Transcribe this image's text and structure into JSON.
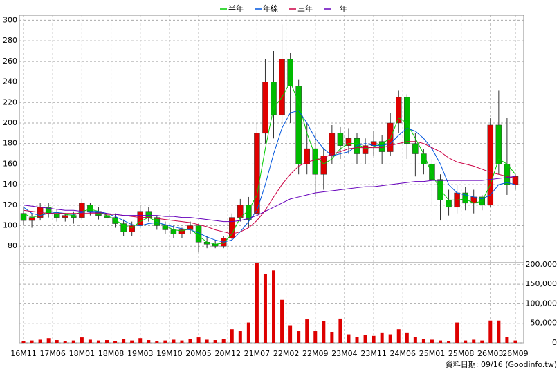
{
  "chart_data": {
    "type": "candlestick",
    "legend": [
      {
        "name": "半年",
        "color": "#00cc00"
      },
      {
        "name": "年線",
        "color": "#0055dd"
      },
      {
        "name": "三年",
        "color": "#cc0044"
      },
      {
        "name": "十年",
        "color": "#6600bb"
      }
    ],
    "up_color": "#e00000",
    "down_color": "#00bb00",
    "grid": true,
    "footer": "資料日期: 09/16 (Goodinfo.tw)",
    "xlim": [
      -1,
      120
    ],
    "xticks": [
      {
        "value": 0,
        "label": "16M11"
      },
      {
        "value": 7,
        "label": "17M06"
      },
      {
        "value": 14,
        "label": "18M01"
      },
      {
        "value": 21,
        "label": "18M08"
      },
      {
        "value": 28,
        "label": "19M03"
      },
      {
        "value": 35,
        "label": "19M10"
      },
      {
        "value": 42,
        "label": "20M05"
      },
      {
        "value": 49,
        "label": "20M12"
      },
      {
        "value": 56,
        "label": "21M07"
      },
      {
        "value": 63,
        "label": "22M02"
      },
      {
        "value": 70,
        "label": "22M09"
      },
      {
        "value": 77,
        "label": "23M04"
      },
      {
        "value": 84,
        "label": "23M11"
      },
      {
        "value": 91,
        "label": "24M06"
      },
      {
        "value": 98,
        "label": "25M01"
      },
      {
        "value": 105,
        "label": "25M08"
      },
      {
        "value": 112,
        "label": "26M03"
      },
      {
        "value": 118,
        "label": "26M09"
      }
    ],
    "ylim": [
      64,
      305
    ],
    "yticks": [
      80,
      100,
      120,
      140,
      160,
      180,
      200,
      220,
      240,
      260,
      280,
      300
    ],
    "x": [
      0,
      2,
      4,
      6,
      8,
      10,
      12,
      14,
      16,
      18,
      20,
      22,
      24,
      26,
      28,
      30,
      32,
      34,
      36,
      38,
      40,
      42,
      44,
      46,
      48,
      50,
      52,
      54,
      56,
      58,
      60,
      62,
      64,
      66,
      68,
      70,
      72,
      74,
      76,
      78,
      80,
      82,
      84,
      86,
      88,
      90,
      92,
      94,
      96,
      98,
      100,
      102,
      104,
      106,
      108,
      110,
      112,
      114,
      116,
      118
    ],
    "ohlc": [
      [
        112,
        118,
        100,
        105
      ],
      [
        105,
        112,
        98,
        108
      ],
      [
        108,
        122,
        105,
        118
      ],
      [
        118,
        122,
        108,
        112
      ],
      [
        112,
        116,
        104,
        108
      ],
      [
        108,
        112,
        104,
        110
      ],
      [
        110,
        114,
        102,
        108
      ],
      [
        108,
        126,
        106,
        122
      ],
      [
        120,
        122,
        110,
        114
      ],
      [
        114,
        118,
        106,
        110
      ],
      [
        110,
        116,
        102,
        108
      ],
      [
        108,
        112,
        98,
        102
      ],
      [
        102,
        106,
        90,
        94
      ],
      [
        94,
        104,
        90,
        100
      ],
      [
        100,
        120,
        98,
        114
      ],
      [
        114,
        118,
        104,
        108
      ],
      [
        108,
        110,
        96,
        100
      ],
      [
        100,
        104,
        92,
        96
      ],
      [
        96,
        100,
        88,
        92
      ],
      [
        92,
        98,
        88,
        96
      ],
      [
        96,
        104,
        92,
        100
      ],
      [
        100,
        102,
        74,
        84
      ],
      [
        84,
        90,
        78,
        82
      ],
      [
        82,
        86,
        78,
        80
      ],
      [
        80,
        90,
        78,
        88
      ],
      [
        88,
        112,
        86,
        108
      ],
      [
        108,
        126,
        104,
        120
      ],
      [
        120,
        128,
        98,
        106
      ],
      [
        112,
        200,
        110,
        190
      ],
      [
        190,
        262,
        180,
        240
      ],
      [
        240,
        270,
        185,
        208
      ],
      [
        208,
        296,
        200,
        262
      ],
      [
        262,
        268,
        200,
        236
      ],
      [
        236,
        242,
        150,
        160
      ],
      [
        160,
        200,
        150,
        175
      ],
      [
        175,
        190,
        128,
        150
      ],
      [
        150,
        175,
        135,
        168
      ],
      [
        168,
        198,
        160,
        190
      ],
      [
        190,
        196,
        165,
        178
      ],
      [
        178,
        195,
        170,
        185
      ],
      [
        185,
        190,
        160,
        170
      ],
      [
        170,
        185,
        160,
        178
      ],
      [
        178,
        192,
        168,
        182
      ],
      [
        182,
        188,
        160,
        172
      ],
      [
        172,
        210,
        168,
        200
      ],
      [
        200,
        232,
        190,
        225
      ],
      [
        225,
        228,
        165,
        180
      ],
      [
        180,
        190,
        148,
        170
      ],
      [
        170,
        175,
        150,
        160
      ],
      [
        160,
        165,
        120,
        145
      ],
      [
        145,
        150,
        105,
        125
      ],
      [
        125,
        135,
        110,
        118
      ],
      [
        118,
        140,
        112,
        132
      ],
      [
        132,
        138,
        115,
        122
      ],
      [
        122,
        135,
        112,
        128
      ],
      [
        128,
        130,
        115,
        120
      ],
      [
        120,
        205,
        118,
        198
      ],
      [
        198,
        232,
        150,
        160
      ],
      [
        160,
        205,
        130,
        140
      ],
      [
        140,
        150,
        135,
        148
      ]
    ],
    "series": [
      {
        "name": "半年",
        "color": "#00cc00",
        "values": [
          112,
          108,
          110,
          114,
          113,
          111,
          110,
          114,
          116,
          114,
          110,
          106,
          100,
          98,
          104,
          108,
          104,
          100,
          96,
          95,
          97,
          90,
          84,
          82,
          83,
          92,
          108,
          115,
          130,
          175,
          215,
          225,
          240,
          220,
          190,
          168,
          160,
          165,
          175,
          180,
          180,
          175,
          177,
          180,
          185,
          205,
          200,
          185,
          170,
          150,
          135,
          125,
          125,
          126,
          122,
          124,
          140,
          165,
          160,
          150
        ]
      },
      {
        "name": "年線",
        "color": "#0055dd",
        "values": [
          118,
          112,
          110,
          112,
          113,
          112,
          111,
          113,
          114,
          114,
          112,
          109,
          105,
          101,
          100,
          102,
          103,
          101,
          99,
          97,
          96,
          93,
          89,
          86,
          84,
          86,
          94,
          104,
          115,
          140,
          170,
          195,
          210,
          212,
          200,
          185,
          175,
          168,
          170,
          172,
          178,
          180,
          178,
          178,
          180,
          188,
          195,
          192,
          185,
          175,
          160,
          140,
          132,
          130,
          128,
          126,
          130,
          140,
          142,
          140
        ]
      },
      {
        "name": "三年",
        "color": "#cc0044",
        "values": [
          115,
          114,
          113,
          112,
          112,
          112,
          112,
          112,
          112,
          112,
          111,
          111,
          110,
          109,
          108,
          108,
          107,
          106,
          105,
          104,
          103,
          101,
          99,
          96,
          94,
          92,
          94,
          98,
          105,
          115,
          128,
          140,
          150,
          158,
          162,
          164,
          166,
          170,
          172,
          175,
          176,
          176,
          176,
          176,
          178,
          180,
          182,
          182,
          180,
          176,
          172,
          166,
          162,
          160,
          158,
          155,
          152,
          150,
          148,
          146
        ]
      },
      {
        "name": "十年",
        "color": "#6600bb",
        "values": [
          120,
          119,
          118,
          117,
          116,
          115,
          115,
          114,
          113,
          113,
          112,
          111,
          110,
          110,
          110,
          110,
          110,
          109,
          109,
          108,
          108,
          107,
          106,
          105,
          104,
          104,
          105,
          107,
          110,
          114,
          118,
          122,
          126,
          128,
          130,
          132,
          133,
          134,
          135,
          136,
          137,
          138,
          138,
          139,
          140,
          141,
          142,
          143,
          143,
          144,
          144,
          144,
          144,
          144,
          144,
          144,
          145,
          146,
          147,
          148
        ]
      }
    ],
    "volume": {
      "color": "#dd0000",
      "ylim": [
        0,
        205000
      ],
      "yticks": [
        0,
        {
          "value": 50000,
          "label": "50,000"
        },
        {
          "value": 100000,
          "label": "100,000"
        },
        {
          "value": 150000,
          "label": "150,000"
        },
        {
          "value": 200000,
          "label": "200,000"
        }
      ],
      "values": [
        4000,
        6000,
        8000,
        12000,
        7000,
        5000,
        6000,
        14000,
        8000,
        6000,
        7000,
        5000,
        9000,
        6000,
        12000,
        7000,
        5000,
        6000,
        8000,
        6000,
        9000,
        14000,
        8000,
        7000,
        10000,
        35000,
        30000,
        52000,
        205000,
        175000,
        185000,
        110000,
        45000,
        30000,
        60000,
        30000,
        55000,
        28000,
        62000,
        22000,
        15000,
        20000,
        18000,
        25000,
        22000,
        35000,
        25000,
        15000,
        10000,
        8000,
        6000,
        5000,
        52000,
        6000,
        8000,
        6000,
        57000,
        57000,
        15000,
        6000
      ]
    }
  }
}
